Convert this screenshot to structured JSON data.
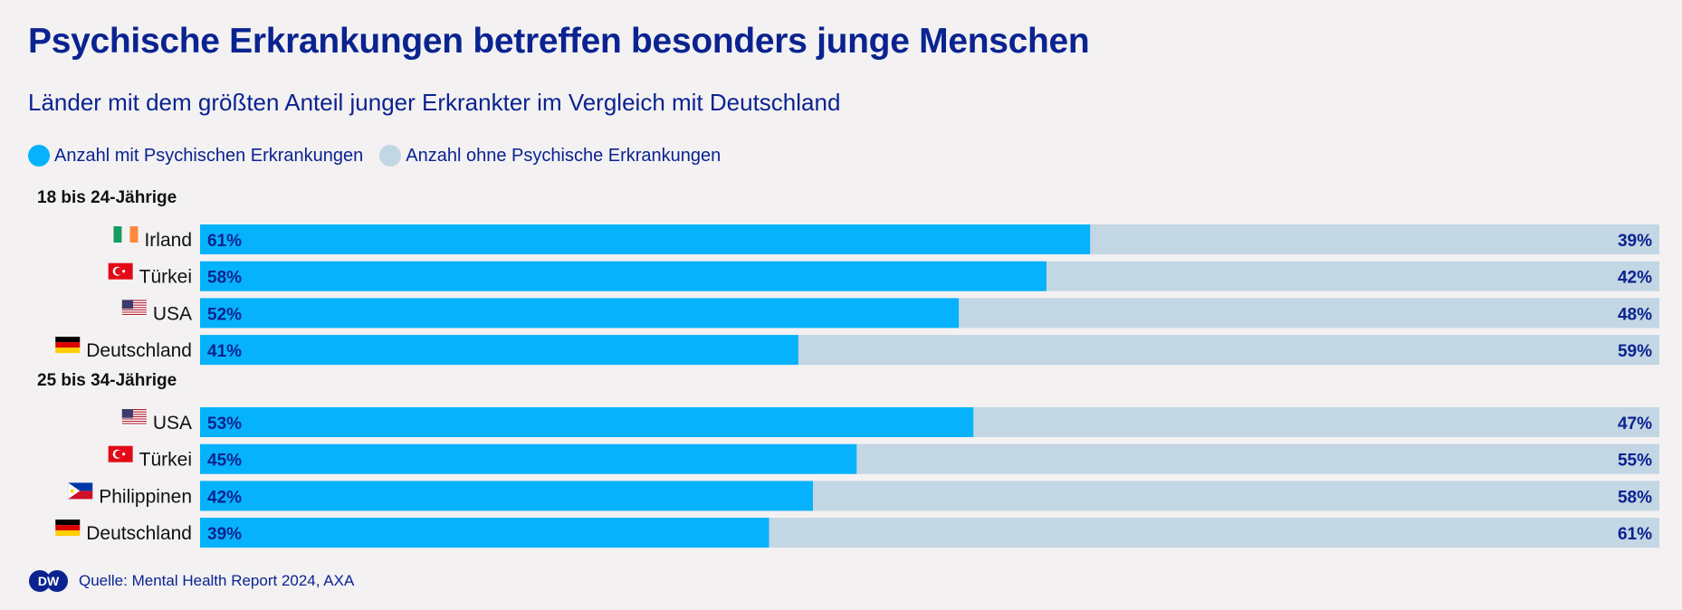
{
  "title": "Psychische Erkrankungen betreffen besonders junge Menschen",
  "subtitle": "Länder mit dem größten Anteil junger Erkrankter im Vergleich mit Deutschland",
  "legend": [
    {
      "label": "Anzahl mit Psychischen Erkrankungen",
      "color": "#05b2fb"
    },
    {
      "label": "Anzahl ohne Psychische Erkrankungen",
      "color": "#c3d6e4"
    }
  ],
  "colors": {
    "with": "#05b2fb",
    "without": "#c3d6e4",
    "value_text": "#0a2390",
    "title": "#0a2390"
  },
  "footer": {
    "source": "Quelle: Mental Health Report 2024, AXA",
    "logo_text": "DW"
  },
  "chart_data": {
    "type": "bar",
    "orientation": "horizontal",
    "stacked": true,
    "unit": "%",
    "series": [
      {
        "name": "Anzahl mit Psychischen Erkrankungen"
      },
      {
        "name": "Anzahl ohne Psychische Erkrankungen"
      }
    ],
    "groups": [
      {
        "label": "18 bis 24-Jährige",
        "rows": [
          {
            "country": "Irland",
            "flag": "flag-ireland-icon",
            "with": 61,
            "without": 39,
            "with_label": "61%",
            "without_label": "39%"
          },
          {
            "country": "Türkei",
            "flag": "flag-turkey-icon",
            "with": 58,
            "without": 42,
            "with_label": "58%",
            "without_label": "42%"
          },
          {
            "country": "USA",
            "flag": "flag-usa-icon",
            "with": 52,
            "without": 48,
            "with_label": "52%",
            "without_label": "48%"
          },
          {
            "country": "Deutschland",
            "flag": "flag-germany-icon",
            "with": 41,
            "without": 59,
            "with_label": "41%",
            "without_label": "59%"
          }
        ]
      },
      {
        "label": "25 bis 34-Jährige",
        "rows": [
          {
            "country": "USA",
            "flag": "flag-usa-icon",
            "with": 53,
            "without": 47,
            "with_label": "53%",
            "without_label": "47%"
          },
          {
            "country": "Türkei",
            "flag": "flag-turkey-icon",
            "with": 45,
            "without": 55,
            "with_label": "45%",
            "without_label": "55%"
          },
          {
            "country": "Philippinen",
            "flag": "flag-philippines-icon",
            "with": 42,
            "without": 58,
            "with_label": "42%",
            "without_label": "58%"
          },
          {
            "country": "Deutschland",
            "flag": "flag-germany-icon",
            "with": 39,
            "without": 61,
            "with_label": "39%",
            "without_label": "61%"
          }
        ]
      }
    ]
  }
}
